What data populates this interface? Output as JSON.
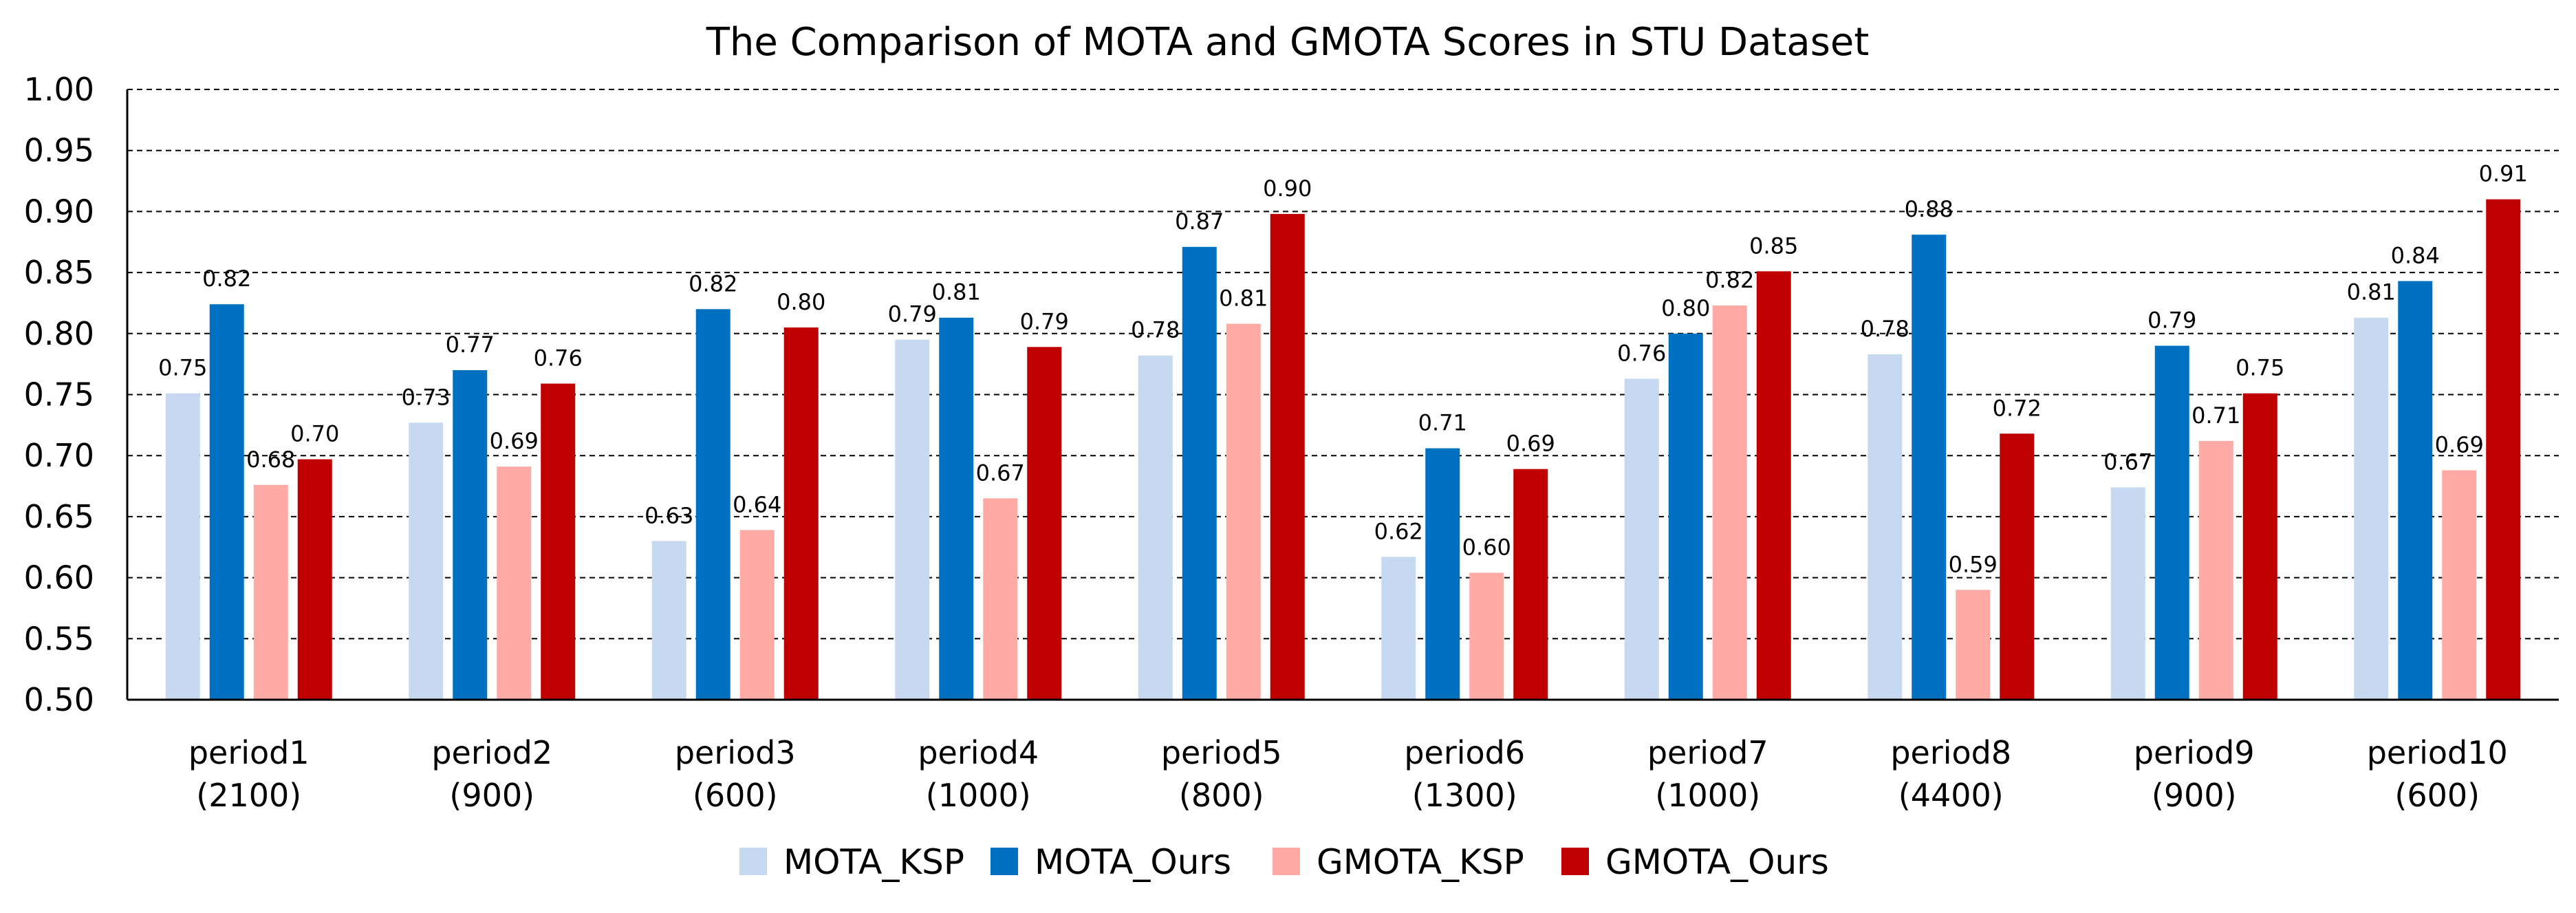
{
  "chart_data": {
    "type": "bar",
    "title": "The Comparison of MOTA and GMOTA Scores in STU Dataset",
    "xlabel": "",
    "ylabel": "",
    "ylim": [
      0.5,
      1.0
    ],
    "yticks": [
      "0.50",
      "0.55",
      "0.60",
      "0.65",
      "0.70",
      "0.75",
      "0.80",
      "0.85",
      "0.90",
      "0.95",
      "1.00"
    ],
    "ytick_values": [
      0.5,
      0.55,
      0.6,
      0.65,
      0.7,
      0.75,
      0.8,
      0.85,
      0.9,
      0.95,
      1.0
    ],
    "grid": true,
    "legend_position": "bottom",
    "categories": [
      {
        "name": "period1",
        "count": "(2100)"
      },
      {
        "name": "period2",
        "count": "(900)"
      },
      {
        "name": "period3",
        "count": "(600)"
      },
      {
        "name": "period4",
        "count": "(1000)"
      },
      {
        "name": "period5",
        "count": "(800)"
      },
      {
        "name": "period6",
        "count": "(1300)"
      },
      {
        "name": "period7",
        "count": "(1000)"
      },
      {
        "name": "period8",
        "count": "(4400)"
      },
      {
        "name": "period9",
        "count": "(900)"
      },
      {
        "name": "period10",
        "count": "(600)"
      }
    ],
    "series": [
      {
        "name": "MOTA_KSP",
        "color": "#c6d9f1",
        "values": [
          0.751,
          0.727,
          0.63,
          0.795,
          0.782,
          0.617,
          0.763,
          0.783,
          0.674,
          0.813
        ],
        "labels": [
          "0.75",
          "0.73",
          "0.63",
          "0.79",
          "0.78",
          "0.62",
          "0.76",
          "0.78",
          "0.67",
          "0.81"
        ]
      },
      {
        "name": "MOTA_Ours",
        "color": "#0070c0",
        "values": [
          0.824,
          0.77,
          0.82,
          0.813,
          0.871,
          0.706,
          0.8,
          0.881,
          0.79,
          0.843
        ],
        "labels": [
          "0.82",
          "0.77",
          "0.82",
          "0.81",
          "0.87",
          "0.71",
          "0.80",
          "0.88",
          "0.79",
          "0.84"
        ]
      },
      {
        "name": "GMOTA_KSP",
        "color": "#ffaaa4",
        "values": [
          0.676,
          0.691,
          0.639,
          0.665,
          0.808,
          0.604,
          0.823,
          0.59,
          0.712,
          0.688
        ],
        "labels": [
          "0.68",
          "0.69",
          "0.64",
          "0.67",
          "0.81",
          "0.60",
          "0.82",
          "0.59",
          "0.71",
          "0.69"
        ]
      },
      {
        "name": "GMOTA_Ours",
        "color": "#c00000",
        "values": [
          0.697,
          0.759,
          0.805,
          0.789,
          0.898,
          0.689,
          0.851,
          0.718,
          0.751,
          0.91
        ],
        "labels": [
          "0.70",
          "0.76",
          "0.80",
          "0.79",
          "0.90",
          "0.69",
          "0.85",
          "0.72",
          "0.75",
          "0.91"
        ]
      }
    ]
  }
}
